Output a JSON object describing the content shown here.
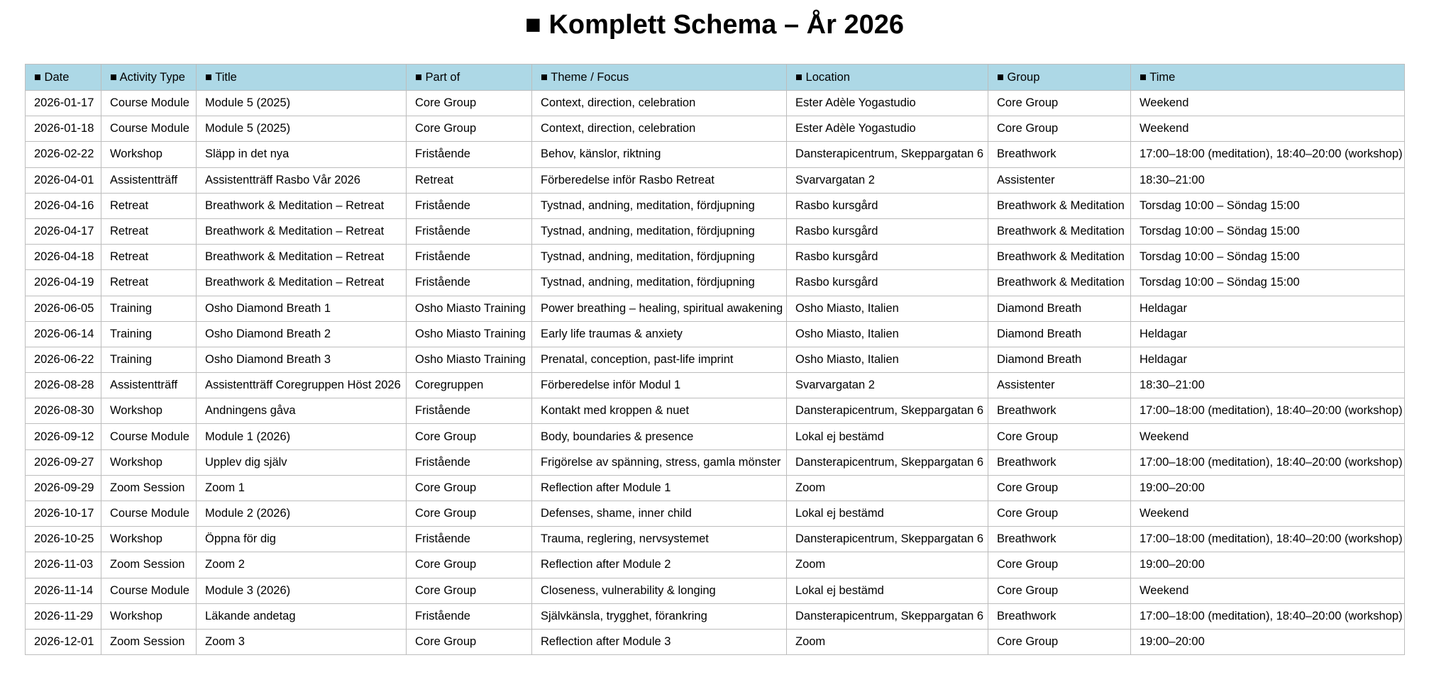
{
  "header": {
    "title": "■ Komplett Schema – År 2026"
  },
  "table": {
    "columns": [
      "■ Date",
      "■ Activity Type",
      "■ Title",
      "■ Part of",
      "■ Theme / Focus",
      "■ Location",
      "■ Group",
      "■ Time"
    ],
    "rows": [
      [
        "2026-01-17",
        "Course Module",
        "Module 5 (2025)",
        "Core Group",
        "Context, direction, celebration",
        "Ester Adèle Yogastudio",
        "Core Group",
        "Weekend"
      ],
      [
        "2026-01-18",
        "Course Module",
        "Module 5 (2025)",
        "Core Group",
        "Context, direction, celebration",
        "Ester Adèle Yogastudio",
        "Core Group",
        "Weekend"
      ],
      [
        "2026-02-22",
        "Workshop",
        "Släpp in det nya",
        "Fristående",
        "Behov, känslor, riktning",
        "Dansterapicentrum, Skeppargatan 6",
        "Breathwork",
        "17:00–18:00 (meditation), 18:40–20:00 (workshop)"
      ],
      [
        "2026-04-01",
        "Assistentträff",
        "Assistentträff Rasbo Vår 2026",
        "Retreat",
        "Förberedelse inför Rasbo Retreat",
        "Svarvargatan 2",
        "Assistenter",
        "18:30–21:00"
      ],
      [
        "2026-04-16",
        "Retreat",
        "Breathwork & Meditation – Retreat",
        "Fristående",
        "Tystnad, andning, meditation, fördjupning",
        "Rasbo kursgård",
        "Breathwork & Meditation",
        "Torsdag 10:00 – Söndag 15:00"
      ],
      [
        "2026-04-17",
        "Retreat",
        "Breathwork & Meditation – Retreat",
        "Fristående",
        "Tystnad, andning, meditation, fördjupning",
        "Rasbo kursgård",
        "Breathwork & Meditation",
        "Torsdag 10:00 – Söndag 15:00"
      ],
      [
        "2026-04-18",
        "Retreat",
        "Breathwork & Meditation – Retreat",
        "Fristående",
        "Tystnad, andning, meditation, fördjupning",
        "Rasbo kursgård",
        "Breathwork & Meditation",
        "Torsdag 10:00 – Söndag 15:00"
      ],
      [
        "2026-04-19",
        "Retreat",
        "Breathwork & Meditation – Retreat",
        "Fristående",
        "Tystnad, andning, meditation, fördjupning",
        "Rasbo kursgård",
        "Breathwork & Meditation",
        "Torsdag 10:00 – Söndag 15:00"
      ],
      [
        "2026-06-05",
        "Training",
        "Osho Diamond Breath 1",
        "Osho Miasto Training",
        "Power breathing – healing, spiritual awakening",
        "Osho Miasto, Italien",
        "Diamond Breath",
        "Heldagar"
      ],
      [
        "2026-06-14",
        "Training",
        "Osho Diamond Breath 2",
        "Osho Miasto Training",
        "Early life traumas & anxiety",
        "Osho Miasto, Italien",
        "Diamond Breath",
        "Heldagar"
      ],
      [
        "2026-06-22",
        "Training",
        "Osho Diamond Breath 3",
        "Osho Miasto Training",
        "Prenatal, conception, past-life imprint",
        "Osho Miasto, Italien",
        "Diamond Breath",
        "Heldagar"
      ],
      [
        "2026-08-28",
        "Assistentträff",
        "Assistentträff Coregruppen Höst 2026",
        "Coregruppen",
        "Förberedelse inför Modul 1",
        "Svarvargatan 2",
        "Assistenter",
        "18:30–21:00"
      ],
      [
        "2026-08-30",
        "Workshop",
        "Andningens gåva",
        "Fristående",
        "Kontakt med kroppen & nuet",
        "Dansterapicentrum, Skeppargatan 6",
        "Breathwork",
        "17:00–18:00 (meditation), 18:40–20:00 (workshop)"
      ],
      [
        "2026-09-12",
        "Course Module",
        "Module 1 (2026)",
        "Core Group",
        "Body, boundaries & presence",
        "Lokal ej bestämd",
        "Core Group",
        "Weekend"
      ],
      [
        "2026-09-27",
        "Workshop",
        "Upplev dig själv",
        "Fristående",
        "Frigörelse av spänning, stress, gamla mönster",
        "Dansterapicentrum, Skeppargatan 6",
        "Breathwork",
        "17:00–18:00 (meditation), 18:40–20:00 (workshop)"
      ],
      [
        "2026-09-29",
        "Zoom Session",
        "Zoom 1",
        "Core Group",
        "Reflection after Module 1",
        "Zoom",
        "Core Group",
        "19:00–20:00"
      ],
      [
        "2026-10-17",
        "Course Module",
        "Module 2 (2026)",
        "Core Group",
        "Defenses, shame, inner child",
        "Lokal ej bestämd",
        "Core Group",
        "Weekend"
      ],
      [
        "2026-10-25",
        "Workshop",
        "Öppna för dig",
        "Fristående",
        "Trauma, reglering, nervsystemet",
        "Dansterapicentrum, Skeppargatan 6",
        "Breathwork",
        "17:00–18:00 (meditation), 18:40–20:00 (workshop)"
      ],
      [
        "2026-11-03",
        "Zoom Session",
        "Zoom 2",
        "Core Group",
        "Reflection after Module 2",
        "Zoom",
        "Core Group",
        "19:00–20:00"
      ],
      [
        "2026-11-14",
        "Course Module",
        "Module 3 (2026)",
        "Core Group",
        "Closeness, vulnerability & longing",
        "Lokal ej bestämd",
        "Core Group",
        "Weekend"
      ],
      [
        "2026-11-29",
        "Workshop",
        "Läkande andetag",
        "Fristående",
        "Självkänsla, trygghet, förankring",
        "Dansterapicentrum, Skeppargatan 6",
        "Breathwork",
        "17:00–18:00 (meditation), 18:40–20:00 (workshop)"
      ],
      [
        "2026-12-01",
        "Zoom Session",
        "Zoom 3",
        "Core Group",
        "Reflection after Module 3",
        "Zoom",
        "Core Group",
        "19:00–20:00"
      ]
    ]
  }
}
